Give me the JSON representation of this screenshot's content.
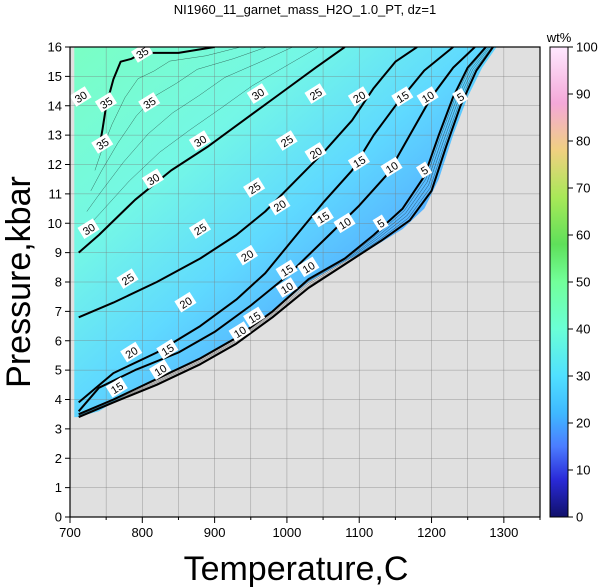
{
  "chart_data": {
    "type": "contour",
    "title": "NI1960_11_garnet_mass_H2O_1.0_PT, dz=1",
    "xlabel": "Temperature,C",
    "ylabel": "Pressure,kbar",
    "xlim": [
      700,
      1350
    ],
    "ylim": [
      0,
      16
    ],
    "x_ticks": [
      700,
      800,
      900,
      1000,
      1100,
      1200,
      1300
    ],
    "y_ticks": [
      0,
      1,
      2,
      3,
      4,
      5,
      6,
      7,
      8,
      9,
      10,
      11,
      12,
      13,
      14,
      15,
      16
    ],
    "grid": true,
    "colorbar": {
      "label": "wt%",
      "range": [
        0,
        100
      ],
      "ticks": [
        0,
        10,
        20,
        30,
        40,
        50,
        60,
        70,
        80,
        90,
        100
      ]
    },
    "field_boundary": [
      [
        710,
        3.4
      ],
      [
        740,
        3.6
      ],
      [
        780,
        4.2
      ],
      [
        830,
        4.8
      ],
      [
        880,
        5.4
      ],
      [
        930,
        6.1
      ],
      [
        980,
        7.0
      ],
      [
        1030,
        8.0
      ],
      [
        1080,
        8.7
      ],
      [
        1120,
        9.2
      ],
      [
        1160,
        9.8
      ],
      [
        1190,
        10.5
      ],
      [
        1210,
        11.5
      ],
      [
        1230,
        13.0
      ],
      [
        1250,
        14.3
      ],
      [
        1270,
        15.3
      ],
      [
        1290,
        16.0
      ]
    ],
    "contours": [
      {
        "level": 5,
        "points": [
          [
            712,
            3.4
          ],
          [
            760,
            3.9
          ],
          [
            820,
            4.5
          ],
          [
            880,
            5.2
          ],
          [
            930,
            5.9
          ],
          [
            980,
            6.8
          ],
          [
            1030,
            7.8
          ],
          [
            1080,
            8.6
          ],
          [
            1130,
            9.4
          ],
          [
            1170,
            10.1
          ],
          [
            1200,
            11.1
          ],
          [
            1220,
            12.6
          ],
          [
            1240,
            14.0
          ],
          [
            1262,
            15.2
          ],
          [
            1285,
            16.0
          ]
        ]
      },
      {
        "level": 10,
        "points": [
          [
            712,
            3.5
          ],
          [
            760,
            4.0
          ],
          [
            820,
            4.7
          ],
          [
            880,
            5.4
          ],
          [
            930,
            6.1
          ],
          [
            980,
            7.0
          ],
          [
            1030,
            8.1
          ],
          [
            1080,
            8.8
          ],
          [
            1120,
            9.6
          ],
          [
            1160,
            10.5
          ],
          [
            1190,
            11.6
          ],
          [
            1210,
            13.0
          ],
          [
            1230,
            14.3
          ],
          [
            1250,
            15.3
          ],
          [
            1275,
            16.0
          ]
        ]
      },
      {
        "level": 15,
        "points": [
          [
            712,
            3.6
          ],
          [
            740,
            4.4
          ],
          [
            790,
            5.0
          ],
          [
            850,
            5.6
          ],
          [
            900,
            6.3
          ],
          [
            950,
            7.2
          ],
          [
            1000,
            8.2
          ],
          [
            1050,
            9.4
          ],
          [
            1100,
            10.6
          ],
          [
            1140,
            11.7
          ],
          [
            1170,
            13.0
          ],
          [
            1200,
            14.3
          ],
          [
            1230,
            15.3
          ],
          [
            1260,
            16.0
          ]
        ]
      },
      {
        "level": 20,
        "points": [
          [
            712,
            3.9
          ],
          [
            760,
            4.9
          ],
          [
            820,
            5.6
          ],
          [
            880,
            6.5
          ],
          [
            930,
            7.4
          ],
          [
            970,
            8.3
          ],
          [
            1010,
            9.5
          ],
          [
            1050,
            10.7
          ],
          [
            1090,
            11.8
          ],
          [
            1120,
            13.0
          ],
          [
            1150,
            14.0
          ],
          [
            1190,
            15.2
          ],
          [
            1230,
            16.0
          ]
        ]
      },
      {
        "level": 25,
        "points": [
          [
            712,
            6.8
          ],
          [
            760,
            7.3
          ],
          [
            820,
            8.0
          ],
          [
            880,
            8.8
          ],
          [
            930,
            9.6
          ],
          [
            970,
            10.4
          ],
          [
            1010,
            11.4
          ],
          [
            1050,
            12.4
          ],
          [
            1090,
            13.5
          ],
          [
            1120,
            14.6
          ],
          [
            1150,
            15.5
          ],
          [
            1180,
            16.0
          ]
        ]
      },
      {
        "level": 30,
        "points": [
          [
            712,
            9.0
          ],
          [
            740,
            9.6
          ],
          [
            790,
            10.8
          ],
          [
            840,
            11.8
          ],
          [
            890,
            12.6
          ],
          [
            940,
            13.5
          ],
          [
            990,
            14.4
          ],
          [
            1040,
            15.3
          ],
          [
            1080,
            16.0
          ]
        ]
      },
      {
        "level": 35,
        "points": [
          [
            740,
            12.5
          ],
          [
            745,
            13.2
          ],
          [
            750,
            14.0
          ],
          [
            760,
            14.9
          ],
          [
            770,
            15.5
          ],
          [
            785,
            15.6
          ],
          [
            800,
            15.8
          ],
          [
            850,
            15.8
          ],
          [
            900,
            16.0
          ]
        ]
      }
    ],
    "contour_labels": [
      {
        "text": "35",
        "x": 800,
        "y": 15.8
      },
      {
        "text": "35",
        "x": 750,
        "y": 14.1
      },
      {
        "text": "35",
        "x": 810,
        "y": 14.1
      },
      {
        "text": "35",
        "x": 745,
        "y": 12.7
      },
      {
        "text": "30",
        "x": 715,
        "y": 14.3
      },
      {
        "text": "30",
        "x": 960,
        "y": 14.4
      },
      {
        "text": "30",
        "x": 880,
        "y": 12.8
      },
      {
        "text": "30",
        "x": 815,
        "y": 11.5
      },
      {
        "text": "30",
        "x": 726,
        "y": 9.8
      },
      {
        "text": "25",
        "x": 1040,
        "y": 14.4
      },
      {
        "text": "25",
        "x": 1000,
        "y": 12.8
      },
      {
        "text": "25",
        "x": 955,
        "y": 11.2
      },
      {
        "text": "25",
        "x": 880,
        "y": 9.8
      },
      {
        "text": "25",
        "x": 780,
        "y": 8.1
      },
      {
        "text": "20",
        "x": 1100,
        "y": 14.3
      },
      {
        "text": "20",
        "x": 1040,
        "y": 12.4
      },
      {
        "text": "20",
        "x": 990,
        "y": 10.6
      },
      {
        "text": "20",
        "x": 945,
        "y": 8.9
      },
      {
        "text": "20",
        "x": 860,
        "y": 7.3
      },
      {
        "text": "20",
        "x": 785,
        "y": 5.6
      },
      {
        "text": "15",
        "x": 1160,
        "y": 14.3
      },
      {
        "text": "15",
        "x": 1100,
        "y": 12.1
      },
      {
        "text": "15",
        "x": 1050,
        "y": 10.2
      },
      {
        "text": "15",
        "x": 1000,
        "y": 8.4
      },
      {
        "text": "15",
        "x": 955,
        "y": 6.8
      },
      {
        "text": "15",
        "x": 835,
        "y": 5.7
      },
      {
        "text": "15",
        "x": 765,
        "y": 4.4
      },
      {
        "text": "10",
        "x": 1195,
        "y": 14.3
      },
      {
        "text": "10",
        "x": 1145,
        "y": 11.9
      },
      {
        "text": "10",
        "x": 1080,
        "y": 10.0
      },
      {
        "text": "10",
        "x": 1030,
        "y": 8.5
      },
      {
        "text": "10",
        "x": 1000,
        "y": 7.8
      },
      {
        "text": "10",
        "x": 935,
        "y": 6.3
      },
      {
        "text": "10",
        "x": 825,
        "y": 5.0
      },
      {
        "text": "5",
        "x": 1240,
        "y": 14.3
      },
      {
        "text": "5",
        "x": 1190,
        "y": 11.8
      },
      {
        "text": "5",
        "x": 1130,
        "y": 10.0
      }
    ],
    "colors": {
      "background": "#e0e0e0",
      "high": "#80ffc8",
      "mid": "#4fc8ff",
      "low": "#3c3cff"
    }
  }
}
